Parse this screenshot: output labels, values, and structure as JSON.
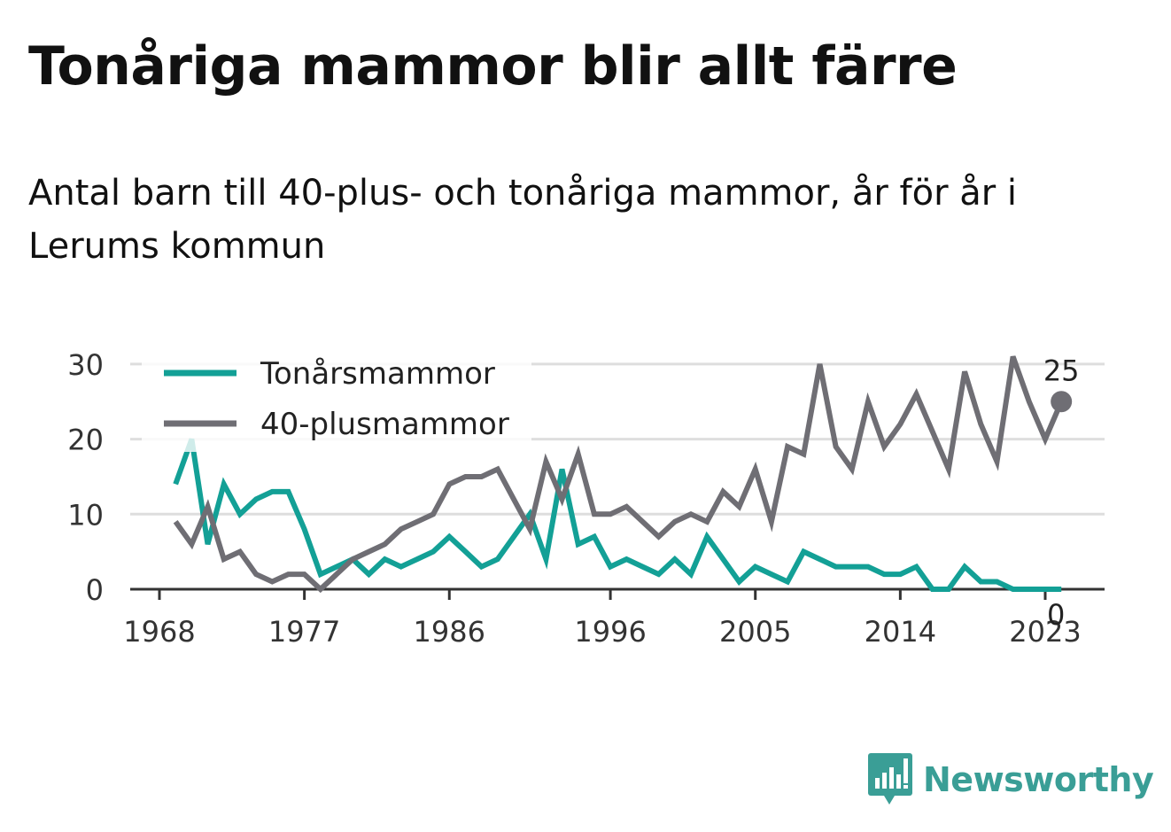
{
  "title": "Tonåriga mammor blir allt färre",
  "subtitle": "Antal barn till 40-plus- och tonåriga mammor, år för år i Lerums kommun",
  "brand": {
    "name": "Newsworthy",
    "color": "#3a9e96",
    "icon": "bar-chart-speech-bubble-icon"
  },
  "chart_data": {
    "type": "line",
    "x_ticks": [
      1968,
      1977,
      1986,
      1996,
      2005,
      2014,
      2023
    ],
    "x_range": [
      1968,
      2025
    ],
    "y_ticks": [
      0,
      10,
      20,
      30
    ],
    "ylim": [
      0,
      30
    ],
    "grid": true,
    "legend_position": "top-left",
    "x": [
      1969,
      1970,
      1971,
      1972,
      1973,
      1974,
      1975,
      1976,
      1977,
      1978,
      1979,
      1980,
      1981,
      1982,
      1983,
      1984,
      1985,
      1986,
      1987,
      1988,
      1989,
      1990,
      1991,
      1992,
      1993,
      1994,
      1995,
      1996,
      1997,
      1998,
      1999,
      2000,
      2001,
      2002,
      2003,
      2004,
      2005,
      2006,
      2007,
      2008,
      2009,
      2010,
      2011,
      2012,
      2013,
      2014,
      2015,
      2016,
      2017,
      2018,
      2019,
      2020,
      2021,
      2022,
      2023,
      2024
    ],
    "series": [
      {
        "name": "Tonårsmammor",
        "color": "#13a096",
        "values": [
          14,
          20,
          6,
          14,
          10,
          12,
          13,
          13,
          8,
          2,
          3,
          4,
          2,
          4,
          3,
          4,
          5,
          7,
          5,
          3,
          4,
          7,
          10,
          4,
          16,
          6,
          7,
          3,
          4,
          3,
          2,
          4,
          2,
          7,
          4,
          1,
          3,
          2,
          1,
          5,
          4,
          3,
          3,
          3,
          2,
          2,
          3,
          0,
          0,
          3,
          1,
          1,
          0,
          0,
          0,
          0
        ],
        "end_label": "0"
      },
      {
        "name": "40-plusmammor",
        "color": "#6f6e74",
        "values": [
          9,
          6,
          11,
          4,
          5,
          2,
          1,
          2,
          2,
          0,
          2,
          4,
          5,
          6,
          8,
          9,
          10,
          14,
          15,
          15,
          16,
          12,
          8,
          17,
          12,
          18,
          10,
          10,
          11,
          9,
          7,
          9,
          10,
          9,
          13,
          11,
          16,
          9,
          19,
          18,
          30,
          19,
          16,
          25,
          19,
          22,
          26,
          21,
          16,
          29,
          22,
          17,
          31,
          25,
          20,
          25
        ],
        "end_label": "25"
      }
    ]
  }
}
